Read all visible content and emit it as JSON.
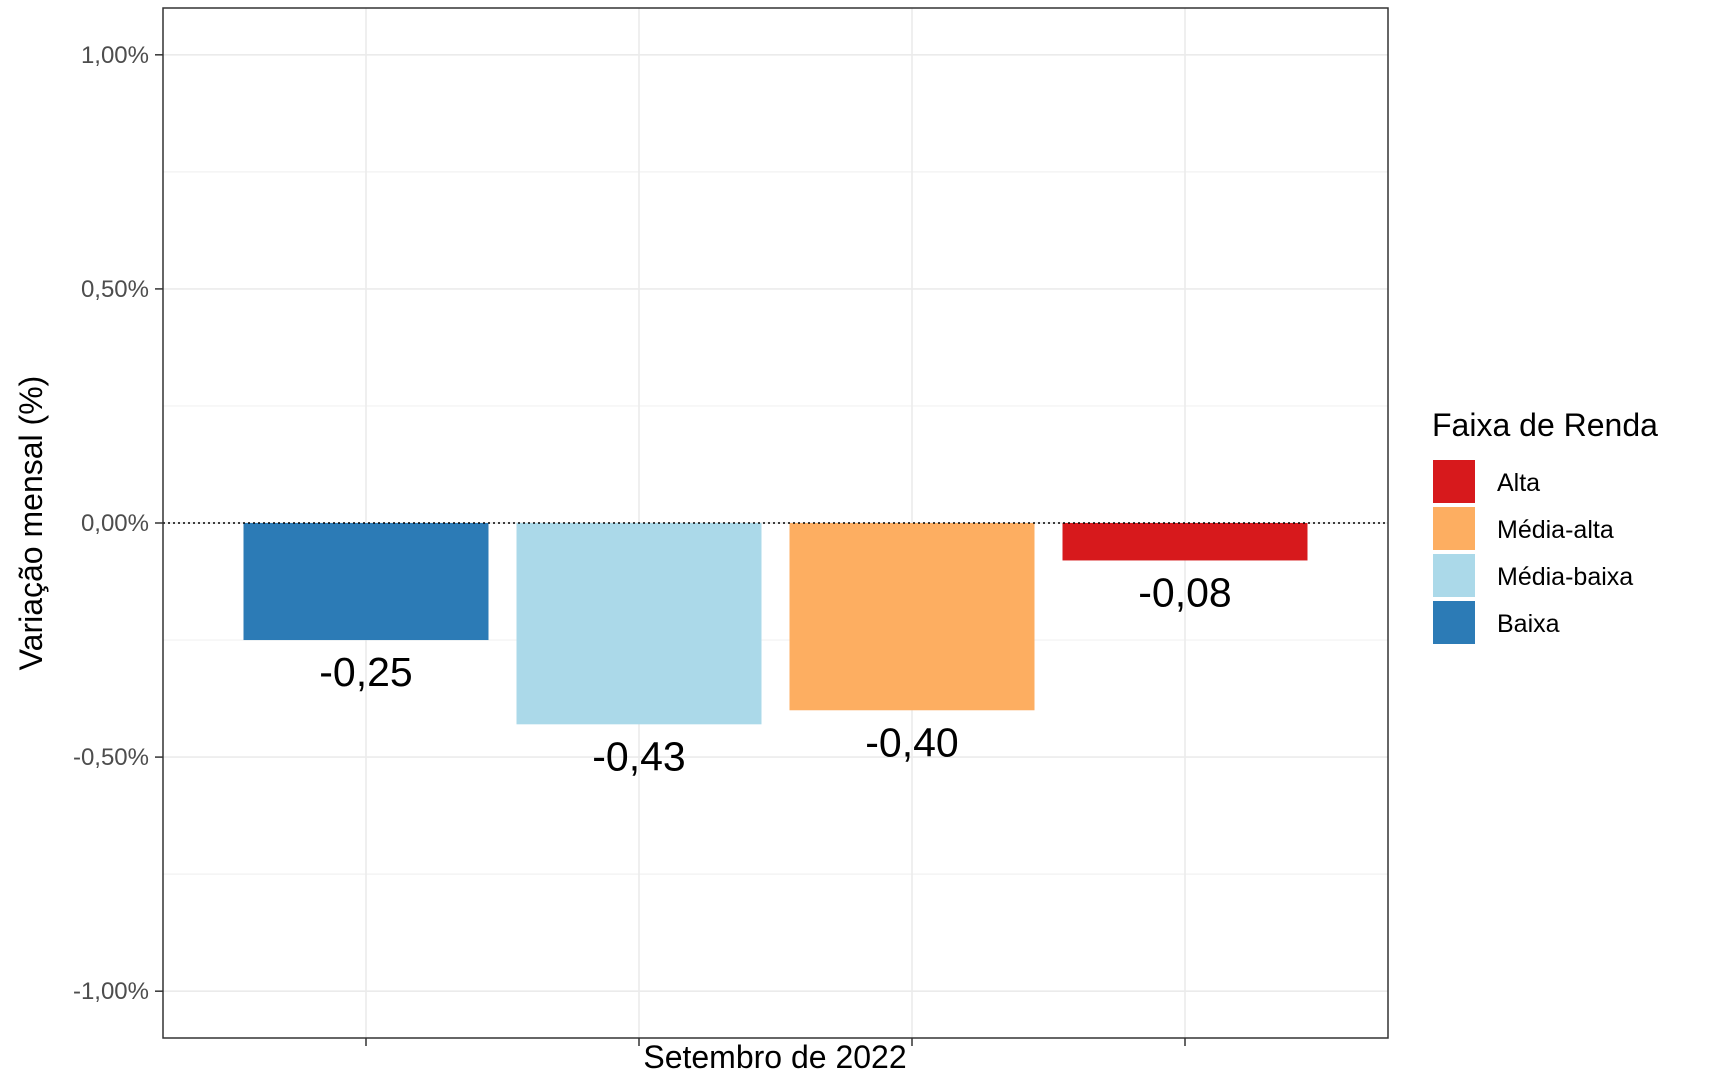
{
  "chart_data": {
    "type": "bar",
    "title": "",
    "xlabel": "Setembro de 2022",
    "ylabel": "Variação mensal (%)",
    "ylim": [
      -1.1,
      1.1
    ],
    "yticks": [
      {
        "value": 1.0,
        "label": "1,00%"
      },
      {
        "value": 0.5,
        "label": "0,50%"
      },
      {
        "value": 0.0,
        "label": "0,00%"
      },
      {
        "value": -0.5,
        "label": "-0,50%"
      },
      {
        "value": -1.0,
        "label": "-1,00%"
      }
    ],
    "grid": true,
    "zero_line": "dotted",
    "bars": [
      {
        "category": "Baixa",
        "value": -0.25,
        "label": "-0,25",
        "color": "#2c7bb6"
      },
      {
        "category": "Média-baixa",
        "value": -0.43,
        "label": "-0,43",
        "color": "#abd9e9"
      },
      {
        "category": "Média-alta",
        "value": -0.4,
        "label": "-0,40",
        "color": "#fdae61"
      },
      {
        "category": "Alta",
        "value": -0.08,
        "label": "-0,08",
        "color": "#d7191c"
      }
    ],
    "legend": {
      "title": "Faixa de Renda",
      "placement": "right",
      "items": [
        {
          "label": "Alta",
          "color": "#d7191c"
        },
        {
          "label": "Média-alta",
          "color": "#fdae61"
        },
        {
          "label": "Média-baixa",
          "color": "#abd9e9"
        },
        {
          "label": "Baixa",
          "color": "#2c7bb6"
        }
      ]
    }
  }
}
